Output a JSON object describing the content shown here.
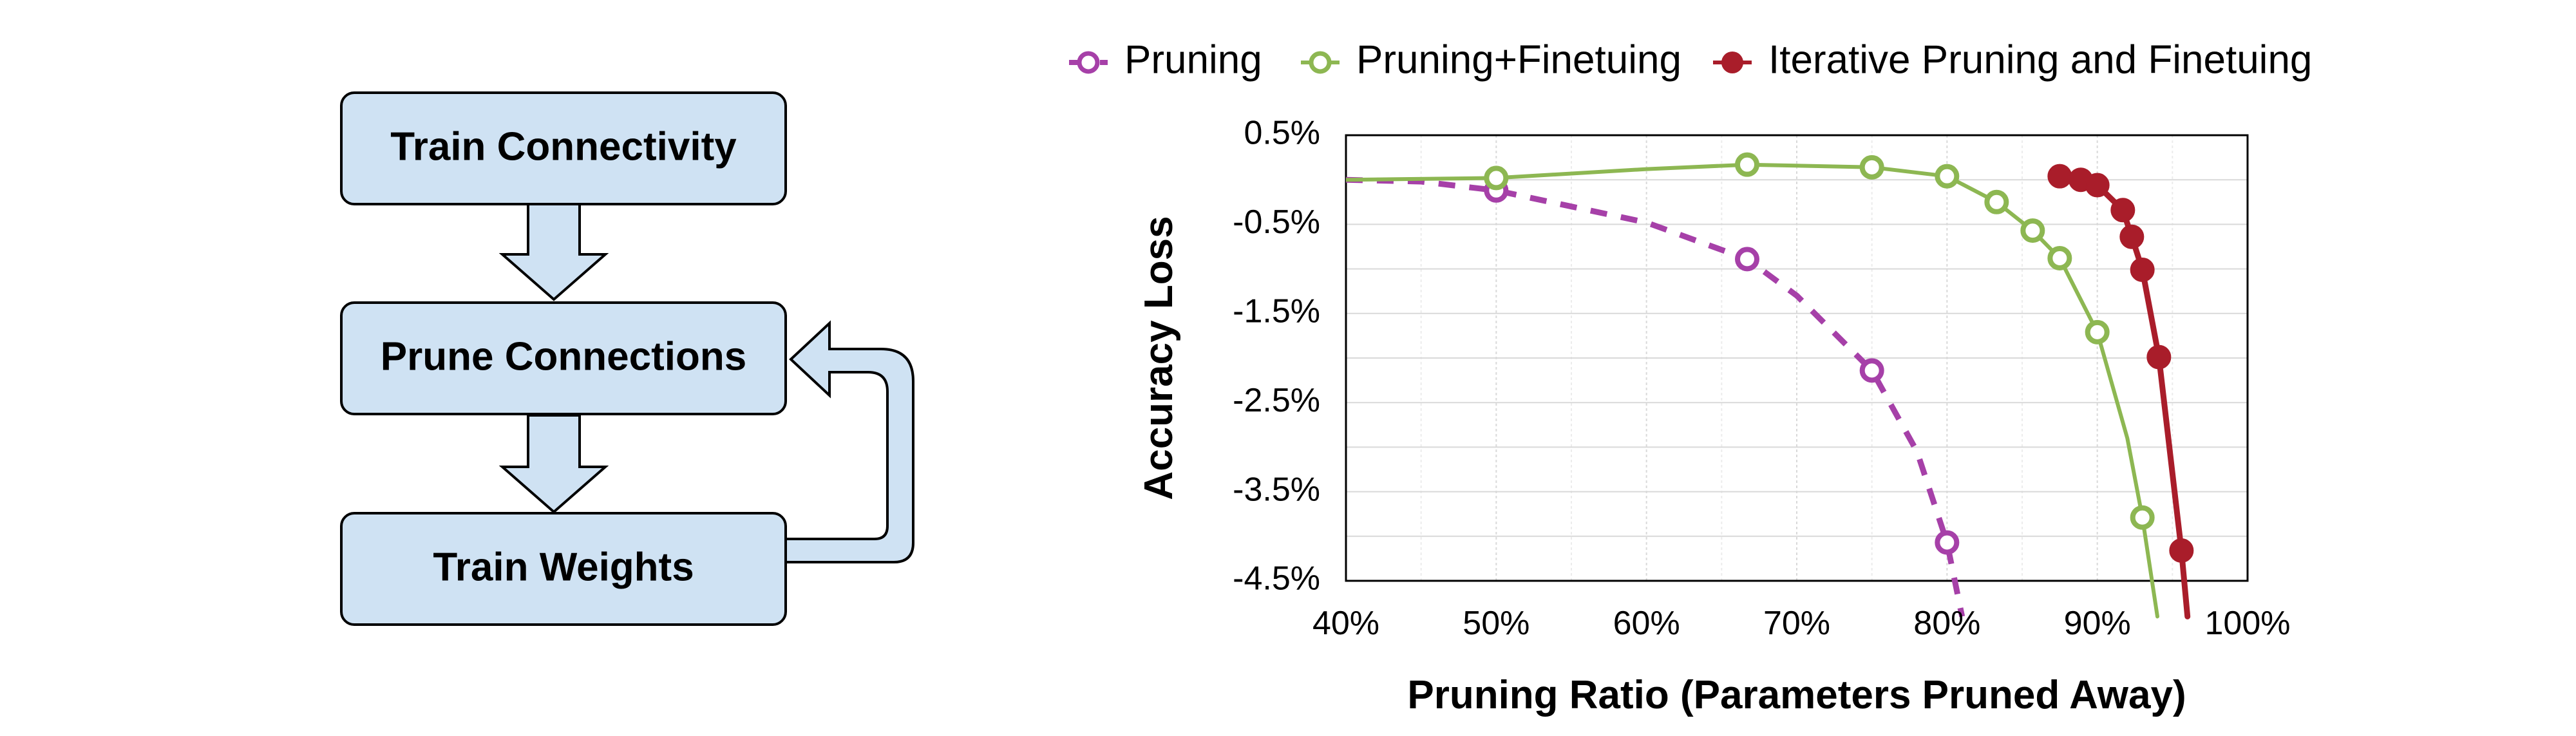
{
  "flowchart": {
    "steps": [
      "Train Connectivity",
      "Prune Connections",
      "Train Weights"
    ],
    "box_fill": "#cfe2f3",
    "box_stroke": "#000000"
  },
  "chart_data": {
    "type": "line",
    "xlabel": "Pruning Ratio (Parameters Pruned Away)",
    "ylabel": "Accuracy Loss",
    "x_unit": "%",
    "y_unit": "%",
    "xlim": [
      40,
      100
    ],
    "ylim": [
      -4.5,
      0.5
    ],
    "x_ticks": [
      40,
      50,
      60,
      70,
      80,
      90,
      100
    ],
    "x_tick_labels": [
      "40%",
      "50%",
      "60%",
      "70%",
      "80%",
      "90%",
      "100%"
    ],
    "y_ticks": [
      0.5,
      -0.5,
      -1.5,
      -2.5,
      -3.5,
      -4.5
    ],
    "y_tick_labels": [
      "0.5%",
      "-0.5%",
      "-1.5%",
      "-2.5%",
      "-3.5%",
      "-4.5%"
    ],
    "grid": true,
    "legend_position": "top",
    "series": [
      {
        "name": "Pruning",
        "color": "#a640a8",
        "marker": "open-circle",
        "line_style": "dashed",
        "points": [
          [
            50,
            -0.12
          ],
          [
            66.7,
            -0.89
          ],
          [
            75,
            -2.14
          ],
          [
            80,
            -4.07
          ]
        ],
        "curve": [
          [
            40,
            0.0
          ],
          [
            45,
            -0.02
          ],
          [
            50,
            -0.12
          ],
          [
            55,
            -0.3
          ],
          [
            60,
            -0.48
          ],
          [
            66.7,
            -0.89
          ],
          [
            70,
            -1.3
          ],
          [
            75,
            -2.14
          ],
          [
            78,
            -3.05
          ],
          [
            80,
            -4.07
          ],
          [
            81,
            -4.9
          ]
        ]
      },
      {
        "name": "Pruning+Finetuing",
        "color": "#8db752",
        "marker": "open-circle",
        "line_style": "solid",
        "points": [
          [
            50,
            0.02
          ],
          [
            66.7,
            0.17
          ],
          [
            75,
            0.14
          ],
          [
            80,
            0.04
          ],
          [
            83.3,
            -0.25
          ],
          [
            85.7,
            -0.57
          ],
          [
            87.5,
            -0.88
          ],
          [
            90,
            -1.71
          ],
          [
            93,
            -3.79
          ]
        ],
        "curve": [
          [
            40,
            0.0
          ],
          [
            50,
            0.02
          ],
          [
            60,
            0.12
          ],
          [
            66.7,
            0.17
          ],
          [
            75,
            0.14
          ],
          [
            80,
            0.04
          ],
          [
            83.3,
            -0.25
          ],
          [
            85.7,
            -0.57
          ],
          [
            87.5,
            -0.88
          ],
          [
            90,
            -1.71
          ],
          [
            92,
            -2.9
          ],
          [
            93,
            -3.79
          ],
          [
            94,
            -4.9
          ]
        ]
      },
      {
        "name": "Iterative Pruning and Finetuing",
        "color": "#a91d2a",
        "marker": "filled-circle",
        "line_style": "solid",
        "points": [
          [
            87.5,
            0.04
          ],
          [
            88.9,
            0.0
          ],
          [
            90,
            -0.06
          ],
          [
            91.7,
            -0.34
          ],
          [
            92.3,
            -0.64
          ],
          [
            93,
            -1.01
          ],
          [
            94.1,
            -1.99
          ],
          [
            95.6,
            -4.16
          ]
        ],
        "curve": [
          [
            87.5,
            0.04
          ],
          [
            88.9,
            0.0
          ],
          [
            90,
            -0.06
          ],
          [
            91.7,
            -0.34
          ],
          [
            92.3,
            -0.64
          ],
          [
            93,
            -1.01
          ],
          [
            94.1,
            -1.99
          ],
          [
            95.6,
            -4.16
          ],
          [
            96,
            -4.9
          ]
        ]
      }
    ]
  }
}
